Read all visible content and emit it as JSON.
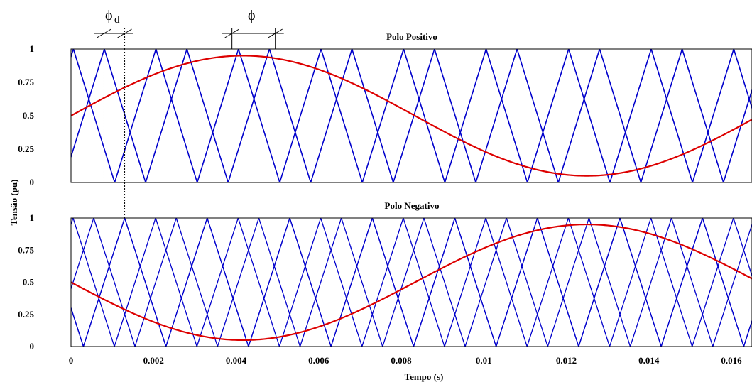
{
  "chart_data": {
    "type": "line",
    "xlabel": "Tempo (s)",
    "ylabel": "Tensão (pu)",
    "xlim": [
      0,
      0.0165
    ],
    "x_ticks": [
      "0",
      "0.002",
      "0.004",
      "0.006",
      "0.008",
      "0.01",
      "0.012",
      "0.014",
      "0.016"
    ],
    "x_tick_values": [
      0,
      0.002,
      0.004,
      0.006,
      0.008,
      0.01,
      0.012,
      0.014,
      0.016
    ],
    "y_ticks": [
      "0",
      "0.25",
      "0.5",
      "0.75",
      "1"
    ],
    "y_tick_values": [
      0,
      0.25,
      0.5,
      0.75,
      1
    ],
    "ylim": [
      0,
      1
    ],
    "grid": false,
    "carrier_color": "#0000cc",
    "reference_color": "#dd0000",
    "carrier_period": 0.002,
    "carrier_shift": 0.00125,
    "reference_amplitude": 0.45,
    "reference_offset": 0.5,
    "reference_frequency": 60,
    "panels": [
      {
        "title": "Polo Positivo",
        "carrier_peaks": [
          0.00081,
          0.000805
        ],
        "reference_sign": 1
      },
      {
        "title": "Polo Negativo",
        "carrier_peaks": [
          0.0013,
          5e-05
        ],
        "reference_sign": -1
      }
    ],
    "annotations": {
      "phi": "ϕ",
      "phi_d": "ϕ",
      "phi_d_sub": "d",
      "phi_d_span": [
        0.0008,
        0.0013
      ],
      "phi_span": [
        0.0039,
        0.00495
      ]
    }
  }
}
